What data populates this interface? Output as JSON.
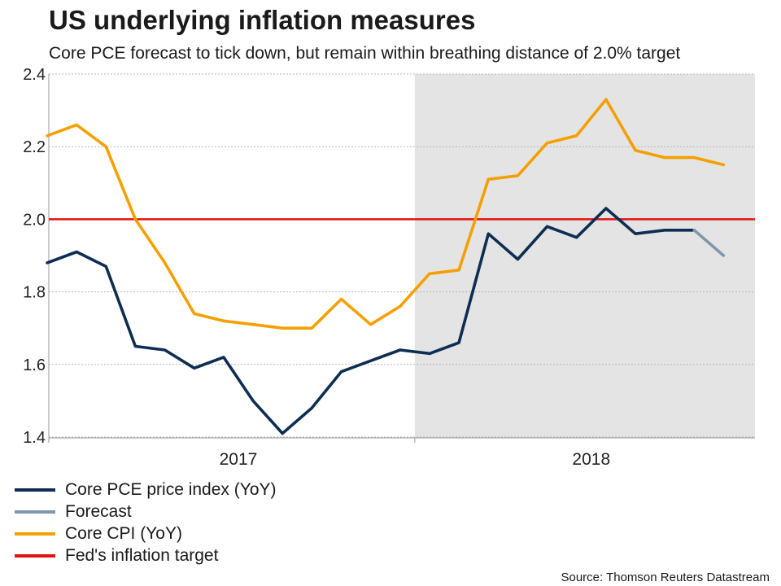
{
  "title": "US underlying inflation measures",
  "subtitle": "Core PCE forecast to tick down, but remain within breathing distance of 2.0% target",
  "source": "Source: Thomson Reuters Datastream",
  "colors": {
    "core_pce": "#0d2d52",
    "forecast": "#7f97ad",
    "core_cpi": "#f5a000",
    "target": "#e31212",
    "shade": "#e4e4e4"
  },
  "legend": [
    {
      "label": "Core PCE price index (YoY)",
      "color": "#0d2d52"
    },
    {
      "label": "Forecast",
      "color": "#7f97ad"
    },
    {
      "label": "Core CPI (YoY)",
      "color": "#f5a000"
    },
    {
      "label": "Fed's inflation target",
      "color": "#e31212"
    }
  ],
  "chart_data": {
    "type": "line",
    "title": "US underlying inflation measures",
    "xlabel": "",
    "ylabel": "",
    "ylim": [
      1.4,
      2.4
    ],
    "yticks": [
      "1.4",
      "1.6",
      "1.8",
      "2.0",
      "2.2",
      "2.4"
    ],
    "x_index_range": [
      0,
      24
    ],
    "year_labels": [
      {
        "label": "2017",
        "x_index": 6.5
      },
      {
        "label": "2018",
        "x_index": 18.5
      }
    ],
    "year_boundaries": [
      0,
      12.5
    ],
    "shaded_region": {
      "from_x_index": 12.5,
      "to_x_index": 24
    },
    "grid": true,
    "series": [
      {
        "name": "Core PCE price index (YoY)",
        "key": "core_pce",
        "x": [
          0,
          1,
          2,
          3,
          4,
          5,
          6,
          7,
          8,
          9,
          10,
          11,
          12,
          13,
          14,
          15,
          16,
          17,
          18,
          19,
          20,
          21,
          22
        ],
        "values": [
          1.88,
          1.91,
          1.87,
          1.65,
          1.64,
          1.59,
          1.62,
          1.5,
          1.41,
          1.48,
          1.58,
          1.61,
          1.64,
          1.63,
          1.66,
          1.96,
          1.89,
          1.98,
          1.95,
          2.03,
          1.96,
          1.97,
          1.97
        ]
      },
      {
        "name": "Forecast",
        "key": "forecast",
        "x": [
          22,
          23
        ],
        "values": [
          1.97,
          1.9
        ]
      },
      {
        "name": "Core CPI (YoY)",
        "key": "core_cpi",
        "x": [
          0,
          1,
          2,
          3,
          4,
          5,
          6,
          7,
          8,
          9,
          10,
          11,
          12,
          13,
          14,
          15,
          16,
          17,
          18,
          19,
          20,
          21,
          22,
          23
        ],
        "values": [
          2.23,
          2.26,
          2.2,
          2.0,
          1.88,
          1.74,
          1.72,
          1.71,
          1.7,
          1.7,
          1.78,
          1.71,
          1.76,
          1.85,
          1.86,
          2.11,
          2.12,
          2.21,
          2.23,
          2.33,
          2.19,
          2.17,
          2.17,
          2.15
        ]
      }
    ],
    "reference_line": {
      "name": "Fed's inflation target",
      "value": 2.0
    }
  }
}
